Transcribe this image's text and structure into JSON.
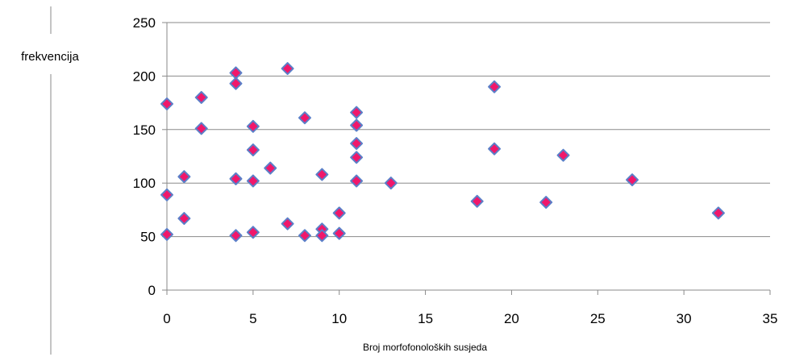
{
  "chart_data": {
    "type": "scatter",
    "title": "",
    "xlabel": "Broj morfofonoloških susjeda",
    "ylabel": "frekvencija",
    "xlim": [
      0,
      35
    ],
    "ylim": [
      0,
      250
    ],
    "x_ticks": [
      "0",
      "5",
      "10",
      "15",
      "20",
      "25",
      "30",
      "35"
    ],
    "y_ticks": [
      "0",
      "50",
      "100",
      "150",
      "200",
      "250"
    ],
    "grid": "horizontal",
    "legend": "none",
    "marker": {
      "shape": "diamond",
      "fill": "#f0176b",
      "stroke": "#5b7fc8"
    },
    "colors": {
      "gridline": "#8a8a8a",
      "axis": "#8a8a8a"
    },
    "series": [
      {
        "points": [
          [
            0,
            174
          ],
          [
            0,
            89
          ],
          [
            0,
            52
          ],
          [
            1,
            106
          ],
          [
            1,
            67
          ],
          [
            2,
            180
          ],
          [
            2,
            151
          ],
          [
            4,
            203
          ],
          [
            4,
            193
          ],
          [
            4,
            104
          ],
          [
            4,
            51
          ],
          [
            5,
            153
          ],
          [
            5,
            131
          ],
          [
            5,
            102
          ],
          [
            5,
            54
          ],
          [
            6,
            114
          ],
          [
            7,
            207
          ],
          [
            7,
            62
          ],
          [
            8,
            161
          ],
          [
            8,
            51
          ],
          [
            9,
            108
          ],
          [
            9,
            57
          ],
          [
            9,
            51
          ],
          [
            10,
            72
          ],
          [
            10,
            53
          ],
          [
            11,
            166
          ],
          [
            11,
            154
          ],
          [
            11,
            137
          ],
          [
            11,
            124
          ],
          [
            11,
            102
          ],
          [
            13,
            100
          ],
          [
            18,
            83
          ],
          [
            19,
            190
          ],
          [
            19,
            132
          ],
          [
            22,
            82
          ],
          [
            23,
            126
          ],
          [
            27,
            103
          ],
          [
            32,
            72
          ]
        ]
      }
    ]
  }
}
